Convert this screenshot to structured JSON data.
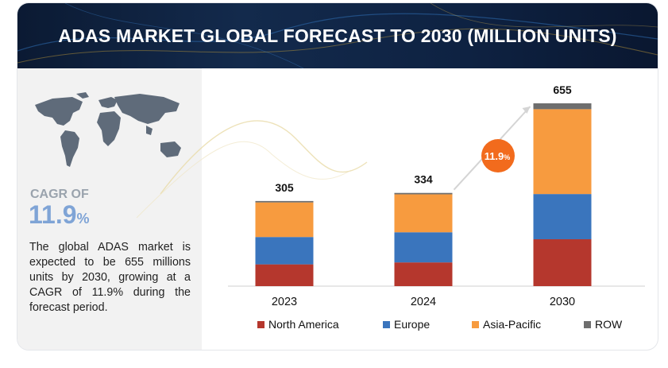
{
  "header": {
    "title": "ADAS MARKET GLOBAL FORECAST TO 2030 (MILLION UNITS)"
  },
  "left_panel": {
    "cagr_label": "CAGR OF",
    "cagr_value": "11.9",
    "cagr_unit": "%",
    "description": "The global ADAS market is expected to be 655 millions units by 2030, growing at a CAGR of 11.9% during the forecast period."
  },
  "chart_data": {
    "type": "bar",
    "stacked": true,
    "categories": [
      "2023",
      "2024",
      "2030"
    ],
    "totals": [
      "305",
      "334",
      "655"
    ],
    "series": [
      {
        "name": "North America",
        "color": "#b5372d",
        "values": [
          78,
          85,
          168
        ]
      },
      {
        "name": "Europe",
        "color": "#3a75bd",
        "values": [
          98,
          108,
          162
        ]
      },
      {
        "name": "Asia-Pacific",
        "color": "#f79b3f",
        "values": [
          124,
          136,
          304
        ]
      },
      {
        "name": "ROW",
        "color": "#6e6e6e",
        "values": [
          5,
          5,
          21
        ]
      }
    ],
    "cagr_badge": {
      "value": "11.9",
      "unit": "%",
      "color": "#f26b1d"
    },
    "ylim": [
      0,
      700
    ],
    "grid": false,
    "legend_position": "bottom"
  }
}
